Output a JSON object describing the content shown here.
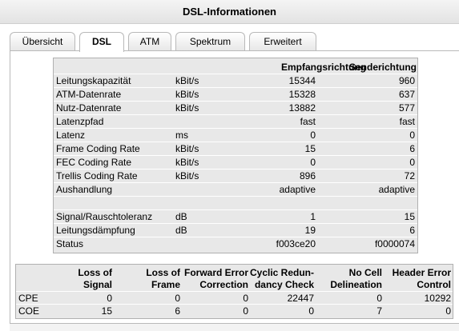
{
  "window": {
    "title": "DSL-Informationen"
  },
  "tabs": [
    "Übersicht",
    "DSL",
    "ATM",
    "Spektrum",
    "Erweitert"
  ],
  "active_tab": "DSL",
  "dsl_table": {
    "headers": {
      "empfang": "Empfangsrichtung",
      "sende": "Senderichtung"
    },
    "rows": [
      {
        "label": "Leitungskapazität",
        "unit": "kBit/s",
        "rx": "15344",
        "tx": "960"
      },
      {
        "label": "ATM-Datenrate",
        "unit": "kBit/s",
        "rx": "15328",
        "tx": "637"
      },
      {
        "label": "Nutz-Datenrate",
        "unit": "kBit/s",
        "rx": "13882",
        "tx": "577"
      },
      {
        "label": "Latenzpfad",
        "unit": "",
        "rx": "fast",
        "tx": "fast"
      },
      {
        "label": "Latenz",
        "unit": "ms",
        "rx": "0",
        "tx": "0"
      },
      {
        "label": "Frame Coding Rate",
        "unit": "kBit/s",
        "rx": "15",
        "tx": "6"
      },
      {
        "label": "FEC Coding Rate",
        "unit": "kBit/s",
        "rx": "0",
        "tx": "0"
      },
      {
        "label": "Trellis Coding Rate",
        "unit": "kBit/s",
        "rx": "896",
        "tx": "72"
      },
      {
        "label": "Aushandlung",
        "unit": "",
        "rx": "adaptive",
        "tx": "adaptive"
      },
      {
        "label": "",
        "unit": "",
        "rx": "",
        "tx": ""
      },
      {
        "label": "Signal/Rauschtoleranz",
        "unit": "dB",
        "rx": "1",
        "tx": "15"
      },
      {
        "label": "Leitungsdämpfung",
        "unit": "dB",
        "rx": "19",
        "tx": "6"
      },
      {
        "label": "Status",
        "unit": "",
        "rx": "f003ce20",
        "tx": "f0000074"
      }
    ]
  },
  "error_table": {
    "headers": [
      [
        "Loss of",
        "Signal"
      ],
      [
        "Loss of",
        "Frame"
      ],
      [
        "Forward Error",
        "Correction"
      ],
      [
        "Cyclic Redun-",
        "dancy Check"
      ],
      [
        "No Cell",
        "Delineation"
      ],
      [
        "Header Error",
        "Control"
      ]
    ],
    "rows": [
      {
        "label": "CPE",
        "values": [
          "0",
          "0",
          "0",
          "22447",
          "0",
          "10292"
        ]
      },
      {
        "label": "COE",
        "values": [
          "15",
          "6",
          "0",
          "0",
          "7",
          "0"
        ]
      }
    ]
  }
}
